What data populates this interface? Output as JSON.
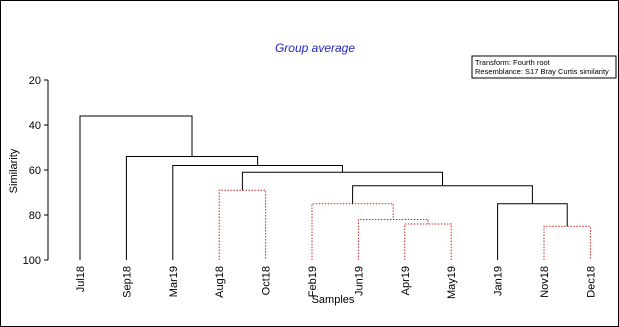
{
  "chart_data": {
    "type": "dendrogram",
    "title": "Group average",
    "xlabel": "Samples",
    "ylabel": "Similarity",
    "ylim": [
      20,
      100
    ],
    "y_inverted": true,
    "yticks": [
      20,
      40,
      60,
      80,
      100
    ],
    "annotations": [
      "Transform: Fourth root",
      "Resemblance: S17 Bray Curtis similarity"
    ],
    "leaves": [
      "Jul18",
      "Sep18",
      "Mar19",
      "Aug18",
      "Oct18",
      "Feb19",
      "Jun19",
      "Apr19",
      "May19",
      "Jan19",
      "Nov18",
      "Dec18"
    ],
    "colors": {
      "significant": "#000000",
      "nonsignificant": "#cc2222"
    },
    "merges": [
      {
        "id": "c1",
        "left": "Aug18",
        "right": "Oct18",
        "similarity": 69,
        "style": "dotted-red"
      },
      {
        "id": "c2",
        "left": "Apr19",
        "right": "May19",
        "similarity": 84,
        "style": "dotted-red"
      },
      {
        "id": "c3",
        "left": "Jun19",
        "right": "c2",
        "similarity": 82,
        "style": "dotted-red"
      },
      {
        "id": "c4",
        "left": "Feb19",
        "right": "c3",
        "similarity": 75,
        "style": "dotted-red"
      },
      {
        "id": "c5",
        "left": "Nov18",
        "right": "Dec18",
        "similarity": 85,
        "style": "dotted-red"
      },
      {
        "id": "c6",
        "left": "Jan19",
        "right": "c5",
        "similarity": 75,
        "style": "solid"
      },
      {
        "id": "c7",
        "left": "c4",
        "right": "c6",
        "similarity": 67,
        "style": "solid"
      },
      {
        "id": "c8",
        "left": "c1",
        "right": "c7",
        "similarity": 61,
        "style": "solid"
      },
      {
        "id": "c9",
        "left": "Mar19",
        "right": "c8",
        "similarity": 58,
        "style": "solid"
      },
      {
        "id": "c10",
        "left": "Sep18",
        "right": "c9",
        "similarity": 54,
        "style": "solid"
      },
      {
        "id": "c11",
        "left": "Jul18",
        "right": "c10",
        "similarity": 36,
        "style": "solid"
      }
    ]
  }
}
